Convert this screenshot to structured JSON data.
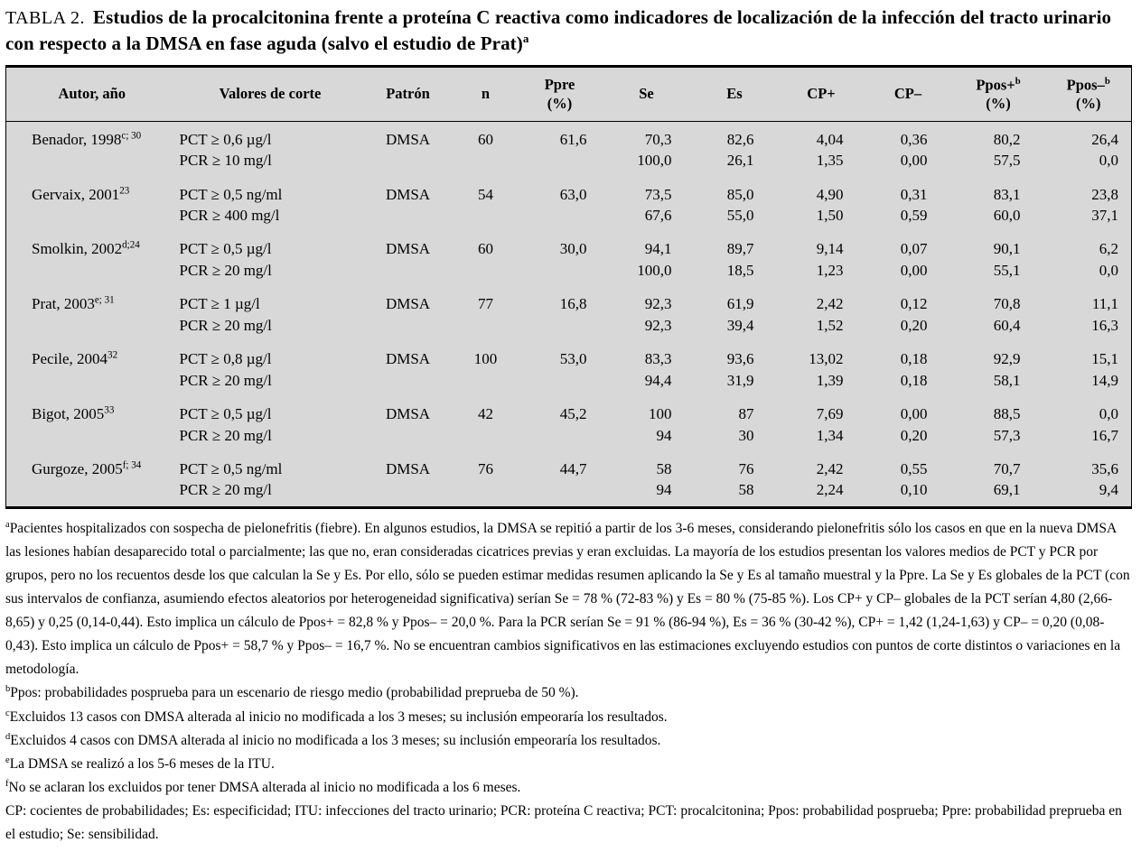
{
  "title": {
    "prefix": "TABLA 2.",
    "text": "Estudios de la procalcitonina frente a proteína C reactiva como indicadores de localización de la infección del tracto urinario con respecto a la DMSA en fase aguda (salvo el estudio de Prat)",
    "sup": "a"
  },
  "colors": {
    "table_bg": "#d8d8d8",
    "text": "#000000",
    "page_bg": "#ffffff"
  },
  "table": {
    "headers": {
      "author": "Autor, año",
      "cutoff": "Valores de corte",
      "patron": "Patrón",
      "n": "n",
      "ppre": {
        "label": "Ppre",
        "unit": "(%)"
      },
      "se": "Se",
      "es": "Es",
      "cp_plus": "CP+",
      "cp_minus": "CP–",
      "ppos_plus": {
        "label": "Ppos+",
        "sup": "b",
        "unit": "(%)"
      },
      "ppos_minus": {
        "label": "Ppos–",
        "sup": "b",
        "unit": "(%)"
      }
    },
    "rows": [
      {
        "author": "Benador, 1998",
        "author_sup": "c; 30",
        "cutoffs": [
          "PCT ≥ 0,6 µg/l",
          "PCR ≥ 10 mg/l"
        ],
        "patron": "DMSA",
        "n": "60",
        "ppre": "61,6",
        "se": [
          "70,3",
          "100,0"
        ],
        "es": [
          "82,6",
          "26,1"
        ],
        "cp_plus": [
          "4,04",
          "1,35"
        ],
        "cp_minus": [
          "0,36",
          "0,00"
        ],
        "ppos_plus": [
          "80,2",
          "57,5"
        ],
        "ppos_minus": [
          "26,4",
          "0,0"
        ]
      },
      {
        "author": "Gervaix, 2001",
        "author_sup": "23",
        "cutoffs": [
          "PCT ≥ 0,5 ng/ml",
          "PCR ≥ 400 mg/l"
        ],
        "patron": "DMSA",
        "n": "54",
        "ppre": "63,0",
        "se": [
          "73,5",
          "67,6"
        ],
        "es": [
          "85,0",
          "55,0"
        ],
        "cp_plus": [
          "4,90",
          "1,50"
        ],
        "cp_minus": [
          "0,31",
          "0,59"
        ],
        "ppos_plus": [
          "83,1",
          "60,0"
        ],
        "ppos_minus": [
          "23,8",
          "37,1"
        ]
      },
      {
        "author": "Smolkin, 2002",
        "author_sup": "d;24",
        "cutoffs": [
          "PCT ≥ 0,5 µg/l",
          "PCR ≥ 20 mg/l"
        ],
        "patron": "DMSA",
        "n": "60",
        "ppre": "30,0",
        "se": [
          "94,1",
          "100,0"
        ],
        "es": [
          "89,7",
          "18,5"
        ],
        "cp_plus": [
          "9,14",
          "1,23"
        ],
        "cp_minus": [
          "0,07",
          "0,00"
        ],
        "ppos_plus": [
          "90,1",
          "55,1"
        ],
        "ppos_minus": [
          "6,2",
          "0,0"
        ]
      },
      {
        "author": "Prat, 2003",
        "author_sup": "e; 31",
        "cutoffs": [
          "PCT ≥ 1 µg/l",
          "PCR ≥ 20 mg/l"
        ],
        "patron": "DMSA",
        "n": "77",
        "ppre": "16,8",
        "se": [
          "92,3",
          "92,3"
        ],
        "es": [
          "61,9",
          "39,4"
        ],
        "cp_plus": [
          "2,42",
          "1,52"
        ],
        "cp_minus": [
          "0,12",
          "0,20"
        ],
        "ppos_plus": [
          "70,8",
          "60,4"
        ],
        "ppos_minus": [
          "11,1",
          "16,3"
        ]
      },
      {
        "author": "Pecile, 2004",
        "author_sup": "32",
        "cutoffs": [
          "PCT ≥ 0,8 µg/l",
          "PCR ≥ 20 mg/l"
        ],
        "patron": "DMSA",
        "n": "100",
        "ppre": "53,0",
        "se": [
          "83,3",
          "94,4"
        ],
        "es": [
          "93,6",
          "31,9"
        ],
        "cp_plus": [
          "13,02",
          "1,39"
        ],
        "cp_minus": [
          "0,18",
          "0,18"
        ],
        "ppos_plus": [
          "92,9",
          "58,1"
        ],
        "ppos_minus": [
          "15,1",
          "14,9"
        ]
      },
      {
        "author": "Bigot, 2005",
        "author_sup": "33",
        "cutoffs": [
          "PCT ≥ 0,5 µg/l",
          "PCR ≥ 20 mg/l"
        ],
        "patron": "DMSA",
        "n": "42",
        "ppre": "45,2",
        "se": [
          "100",
          "94"
        ],
        "es": [
          "87",
          "30"
        ],
        "cp_plus": [
          "7,69",
          "1,34"
        ],
        "cp_minus": [
          "0,00",
          "0,20"
        ],
        "ppos_plus": [
          "88,5",
          "57,3"
        ],
        "ppos_minus": [
          "0,0",
          "16,7"
        ]
      },
      {
        "author": "Gurgoze, 2005",
        "author_sup": "f; 34",
        "cutoffs": [
          "PCT ≥ 0,5 ng/ml",
          "PCR ≥ 20 mg/l"
        ],
        "patron": "DMSA",
        "n": "76",
        "ppre": "44,7",
        "se": [
          "58",
          "94"
        ],
        "es": [
          "76",
          "58"
        ],
        "cp_plus": [
          "2,42",
          "2,24"
        ],
        "cp_minus": [
          "0,55",
          "0,10"
        ],
        "ppos_plus": [
          "70,7",
          "69,1"
        ],
        "ppos_minus": [
          "35,6",
          "9,4"
        ]
      }
    ]
  },
  "footnotes": [
    {
      "sup": "a",
      "text": "Pacientes hospitalizados con sospecha de pielonefritis (fiebre). En algunos estudios, la DMSA se repitió a partir de los 3-6 meses, considerando pielonefritis sólo los casos en que en la nueva DMSA las lesiones habían desaparecido total o parcialmente; las que no, eran consideradas cicatrices previas y eran excluidas. La mayoría de los estudios presentan los valores medios de PCT y PCR por grupos, pero no los recuentos desde los que calculan la Se y Es. Por ello, sólo se pueden estimar medidas resumen aplicando la Se y Es al tamaño muestral y la Ppre. La Se y Es globales de la PCT (con sus intervalos de confianza, asumiendo efectos aleatorios por heterogeneidad significativa) serían Se = 78 % (72-83 %) y Es = 80 % (75-85 %). Los CP+ y CP– globales de la PCT serían 4,80 (2,66-8,65) y 0,25 (0,14-0,44). Esto implica un cálculo de Ppos+ = 82,8 % y Ppos– = 20,0 %. Para la PCR serían Se = 91 % (86-94 %), Es = 36 % (30-42 %), CP+ = 1,42 (1,24-1,63) y CP– = 0,20 (0,08-0,43). Esto implica un cálculo de Ppos+ = 58,7 % y Ppos– = 16,7 %. No se encuentran cambios significativos en las estimaciones excluyendo estudios con puntos de corte distintos o variaciones en la metodología."
    },
    {
      "sup": "b",
      "text": "Ppos: probabilidades posprueba para un escenario de riesgo medio (probabilidad preprueba de 50 %)."
    },
    {
      "sup": "c",
      "text": "Excluidos 13 casos con DMSA alterada al inicio no modificada a los 3 meses; su inclusión empeoraría los resultados."
    },
    {
      "sup": "d",
      "text": "Excluidos 4 casos con DMSA alterada al inicio no modificada a los 3 meses; su inclusión empeoraría los resultados."
    },
    {
      "sup": "e",
      "text": "La DMSA se realizó a los 5-6 meses de la ITU."
    },
    {
      "sup": "f",
      "text": "No se aclaran los excluidos por tener DMSA alterada al inicio no modificada a los 6 meses."
    },
    {
      "sup": "",
      "text": "CP: cocientes de probabilidades; Es: especificidad; ITU: infecciones del tracto urinario; PCR: proteína C reactiva; PCT: procalcitonina; Ppos: probabilidad posprueba; Ppre: probabilidad preprueba en el estudio; Se: sensibilidad."
    }
  ]
}
